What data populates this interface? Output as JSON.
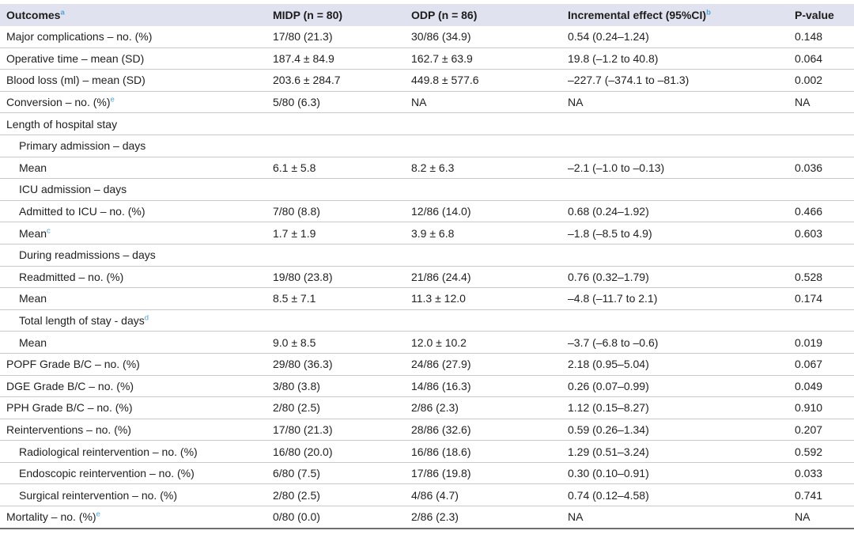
{
  "colors": {
    "header_background": "#e0e3ef",
    "footnote_marker_blue": "#4ba4d7",
    "text": "#212121",
    "row_divider": "#c9c9c9",
    "table_bottom_border": "#6f6f6f"
  },
  "table": {
    "columns": [
      {
        "label": "Outcomes",
        "sup": "a"
      },
      {
        "label": "MIDP (n = 80)",
        "sup": ""
      },
      {
        "label": "ODP (n = 86)",
        "sup": ""
      },
      {
        "label": "Incremental effect (95%CI)",
        "sup": "b"
      },
      {
        "label": "P-value",
        "sup": ""
      }
    ],
    "rows": [
      {
        "label": "Major complications – no. (%)",
        "sup": "",
        "indent": 0,
        "midp": "17/80 (21.3)",
        "odp": "30/86 (34.9)",
        "effect": "0.54 (0.24–1.24)",
        "p": "0.148"
      },
      {
        "label": "Operative time – mean (SD)",
        "sup": "",
        "indent": 0,
        "midp": "187.4 ± 84.9",
        "odp": "162.7 ± 63.9",
        "effect": "19.8 (–1.2 to 40.8)",
        "p": "0.064"
      },
      {
        "label": "Blood loss (ml) – mean (SD)",
        "sup": "",
        "indent": 0,
        "midp": "203.6 ± 284.7",
        "odp": "449.8 ± 577.6",
        "effect": "–227.7 (–374.1 to –81.3)",
        "p": "0.002"
      },
      {
        "label": "Conversion – no. (%)",
        "sup": "e",
        "indent": 0,
        "midp": "5/80 (6.3)",
        "odp": "NA",
        "effect": "NA",
        "p": "NA"
      },
      {
        "label": "Length of hospital stay",
        "sup": "",
        "indent": 0,
        "midp": "",
        "odp": "",
        "effect": "",
        "p": ""
      },
      {
        "label": "Primary admission – days",
        "sup": "",
        "indent": 1,
        "midp": "",
        "odp": "",
        "effect": "",
        "p": ""
      },
      {
        "label": "Mean",
        "sup": "",
        "indent": 1,
        "midp": "6.1 ± 5.8",
        "odp": "8.2 ± 6.3",
        "effect": "–2.1 (–1.0 to –0.13)",
        "p": "0.036"
      },
      {
        "label": "ICU admission – days",
        "sup": "",
        "indent": 1,
        "midp": "",
        "odp": "",
        "effect": "",
        "p": ""
      },
      {
        "label": "Admitted to ICU – no. (%)",
        "sup": "",
        "indent": 1,
        "midp": "7/80 (8.8)",
        "odp": "12/86 (14.0)",
        "effect": "0.68 (0.24–1.92)",
        "p": "0.466"
      },
      {
        "label": "Mean",
        "sup": "c",
        "indent": 1,
        "midp": "1.7 ± 1.9",
        "odp": "3.9 ± 6.8",
        "effect": "–1.8 (–8.5 to 4.9)",
        "p": "0.603"
      },
      {
        "label": "During readmissions – days",
        "sup": "",
        "indent": 1,
        "midp": "",
        "odp": "",
        "effect": "",
        "p": ""
      },
      {
        "label": "Readmitted – no. (%)",
        "sup": "",
        "indent": 1,
        "midp": "19/80 (23.8)",
        "odp": "21/86 (24.4)",
        "effect": "0.76 (0.32–1.79)",
        "p": "0.528"
      },
      {
        "label": "Mean",
        "sup": "",
        "indent": 1,
        "midp": "8.5 ± 7.1",
        "odp": "11.3 ± 12.0",
        "effect": "–4.8 (–11.7 to 2.1)",
        "p": "0.174"
      },
      {
        "label": "Total length of stay - days",
        "sup": "d",
        "indent": 1,
        "midp": "",
        "odp": "",
        "effect": "",
        "p": ""
      },
      {
        "label": "Mean",
        "sup": "",
        "indent": 1,
        "midp": "9.0 ± 8.5",
        "odp": "12.0 ± 10.2",
        "effect": "–3.7 (–6.8 to –0.6)",
        "p": "0.019"
      },
      {
        "label": "POPF Grade B/C – no. (%)",
        "sup": "",
        "indent": 0,
        "midp": "29/80 (36.3)",
        "odp": "24/86 (27.9)",
        "effect": "2.18 (0.95–5.04)",
        "p": "0.067"
      },
      {
        "label": "DGE Grade B/C – no. (%)",
        "sup": "",
        "indent": 0,
        "midp": "3/80 (3.8)",
        "odp": "14/86 (16.3)",
        "effect": "0.26 (0.07–0.99)",
        "p": "0.049"
      },
      {
        "label": "PPH Grade B/C – no. (%)",
        "sup": "",
        "indent": 0,
        "midp": "2/80 (2.5)",
        "odp": "2/86 (2.3)",
        "effect": "1.12 (0.15–8.27)",
        "p": "0.910"
      },
      {
        "label": "Reinterventions – no. (%)",
        "sup": "",
        "indent": 0,
        "midp": "17/80 (21.3)",
        "odp": "28/86 (32.6)",
        "effect": "0.59 (0.26–1.34)",
        "p": "0.207"
      },
      {
        "label": "Radiological reintervention – no. (%)",
        "sup": "",
        "indent": 1,
        "midp": "16/80 (20.0)",
        "odp": "16/86 (18.6)",
        "effect": "1.29 (0.51–3.24)",
        "p": "0.592"
      },
      {
        "label": "Endoscopic reintervention – no. (%)",
        "sup": "",
        "indent": 1,
        "midp": "6/80 (7.5)",
        "odp": "17/86 (19.8)",
        "effect": "0.30 (0.10–0.91)",
        "p": "0.033"
      },
      {
        "label": "Surgical reintervention – no. (%)",
        "sup": "",
        "indent": 1,
        "midp": "2/80 (2.5)",
        "odp": "4/86 (4.7)",
        "effect": "0.74 (0.12–4.58)",
        "p": "0.741"
      },
      {
        "label": "Mortality – no. (%)",
        "sup": "e",
        "indent": 0,
        "midp": "0/80 (0.0)",
        "odp": "2/86 (2.3)",
        "effect": "NA",
        "p": "NA"
      }
    ]
  }
}
